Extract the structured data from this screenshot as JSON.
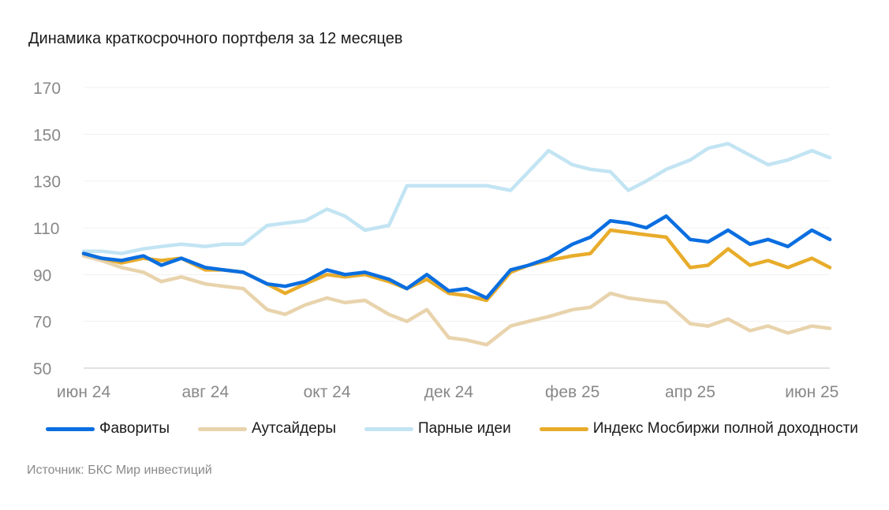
{
  "chart_data": {
    "type": "line",
    "title": "Динамика краткосрочного портфеля за 12 месяцев",
    "xlabel": "",
    "ylabel": "",
    "ylim": [
      50,
      170
    ],
    "yticks": [
      50,
      70,
      90,
      110,
      130,
      150,
      170
    ],
    "x_tick_labels": [
      "июн 24",
      "авг 24",
      "окт 24",
      "дек 24",
      "фев 25",
      "апр 25",
      "июн 25"
    ],
    "x_start": "2024-06-01",
    "x_end": "2025-06-10",
    "x_ticks": [
      "2024-06-01",
      "2024-08-01",
      "2024-10-01",
      "2024-12-01",
      "2025-02-01",
      "2025-04-01",
      "2025-06-01"
    ],
    "grid": true,
    "legend_position": "bottom",
    "series": [
      {
        "name": "Фавориты",
        "color": "#0a6ee0",
        "points": [
          [
            "2024-06-01",
            99
          ],
          [
            "2024-06-10",
            97
          ],
          [
            "2024-06-20",
            96
          ],
          [
            "2024-07-01",
            98
          ],
          [
            "2024-07-10",
            94
          ],
          [
            "2024-07-20",
            97
          ],
          [
            "2024-08-01",
            93
          ],
          [
            "2024-08-10",
            92
          ],
          [
            "2024-08-20",
            91
          ],
          [
            "2024-09-01",
            86
          ],
          [
            "2024-09-10",
            85
          ],
          [
            "2024-09-20",
            87
          ],
          [
            "2024-10-01",
            92
          ],
          [
            "2024-10-10",
            90
          ],
          [
            "2024-10-20",
            91
          ],
          [
            "2024-11-01",
            88
          ],
          [
            "2024-11-10",
            84
          ],
          [
            "2024-11-20",
            90
          ],
          [
            "2024-12-01",
            83
          ],
          [
            "2024-12-10",
            84
          ],
          [
            "2024-12-20",
            80
          ],
          [
            "2025-01-01",
            92
          ],
          [
            "2025-01-10",
            94
          ],
          [
            "2025-01-20",
            97
          ],
          [
            "2025-02-01",
            103
          ],
          [
            "2025-02-10",
            106
          ],
          [
            "2025-02-20",
            113
          ],
          [
            "2025-03-01",
            112
          ],
          [
            "2025-03-10",
            110
          ],
          [
            "2025-03-20",
            115
          ],
          [
            "2025-04-01",
            105
          ],
          [
            "2025-04-10",
            104
          ],
          [
            "2025-04-20",
            109
          ],
          [
            "2025-05-01",
            103
          ],
          [
            "2025-05-10",
            105
          ],
          [
            "2025-05-20",
            102
          ],
          [
            "2025-06-01",
            109
          ],
          [
            "2025-06-10",
            105
          ]
        ]
      },
      {
        "name": "Аутсайдеры",
        "color": "#e8d3ac",
        "points": [
          [
            "2024-06-01",
            98
          ],
          [
            "2024-06-10",
            96
          ],
          [
            "2024-06-20",
            93
          ],
          [
            "2024-07-01",
            91
          ],
          [
            "2024-07-10",
            87
          ],
          [
            "2024-07-20",
            89
          ],
          [
            "2024-08-01",
            86
          ],
          [
            "2024-08-10",
            85
          ],
          [
            "2024-08-20",
            84
          ],
          [
            "2024-09-01",
            75
          ],
          [
            "2024-09-10",
            73
          ],
          [
            "2024-09-20",
            77
          ],
          [
            "2024-10-01",
            80
          ],
          [
            "2024-10-10",
            78
          ],
          [
            "2024-10-20",
            79
          ],
          [
            "2024-11-01",
            73
          ],
          [
            "2024-11-10",
            70
          ],
          [
            "2024-11-20",
            75
          ],
          [
            "2024-12-01",
            63
          ],
          [
            "2024-12-10",
            62
          ],
          [
            "2024-12-20",
            60
          ],
          [
            "2025-01-01",
            68
          ],
          [
            "2025-01-10",
            70
          ],
          [
            "2025-01-20",
            72
          ],
          [
            "2025-02-01",
            75
          ],
          [
            "2025-02-10",
            76
          ],
          [
            "2025-02-20",
            82
          ],
          [
            "2025-03-01",
            80
          ],
          [
            "2025-03-10",
            79
          ],
          [
            "2025-03-20",
            78
          ],
          [
            "2025-04-01",
            69
          ],
          [
            "2025-04-10",
            68
          ],
          [
            "2025-04-20",
            71
          ],
          [
            "2025-05-01",
            66
          ],
          [
            "2025-05-10",
            68
          ],
          [
            "2025-05-20",
            65
          ],
          [
            "2025-06-01",
            68
          ],
          [
            "2025-06-10",
            67
          ]
        ]
      },
      {
        "name": "Парные идеи",
        "color": "#c2e4f3",
        "points": [
          [
            "2024-06-01",
            100
          ],
          [
            "2024-06-10",
            100
          ],
          [
            "2024-06-20",
            99
          ],
          [
            "2024-07-01",
            101
          ],
          [
            "2024-07-10",
            102
          ],
          [
            "2024-07-20",
            103
          ],
          [
            "2024-08-01",
            102
          ],
          [
            "2024-08-10",
            103
          ],
          [
            "2024-08-20",
            103
          ],
          [
            "2024-09-01",
            111
          ],
          [
            "2024-09-10",
            112
          ],
          [
            "2024-09-20",
            113
          ],
          [
            "2024-10-01",
            118
          ],
          [
            "2024-10-10",
            115
          ],
          [
            "2024-10-20",
            109
          ],
          [
            "2024-11-01",
            111
          ],
          [
            "2024-11-10",
            128
          ],
          [
            "2024-11-20",
            128
          ],
          [
            "2024-12-01",
            128
          ],
          [
            "2024-12-10",
            128
          ],
          [
            "2024-12-20",
            128
          ],
          [
            "2025-01-01",
            126
          ],
          [
            "2025-01-10",
            134
          ],
          [
            "2025-01-20",
            143
          ],
          [
            "2025-02-01",
            137
          ],
          [
            "2025-02-10",
            135
          ],
          [
            "2025-02-20",
            134
          ],
          [
            "2025-03-01",
            126
          ],
          [
            "2025-03-10",
            130
          ],
          [
            "2025-03-20",
            135
          ],
          [
            "2025-04-01",
            139
          ],
          [
            "2025-04-10",
            144
          ],
          [
            "2025-04-20",
            146
          ],
          [
            "2025-05-01",
            141
          ],
          [
            "2025-05-10",
            137
          ],
          [
            "2025-05-20",
            139
          ],
          [
            "2025-06-01",
            143
          ],
          [
            "2025-06-10",
            140
          ]
        ]
      },
      {
        "name": "Индекс Мосбиржи полной доходности",
        "color": "#e8ac2b",
        "points": [
          [
            "2024-06-01",
            99
          ],
          [
            "2024-06-10",
            97
          ],
          [
            "2024-06-20",
            95
          ],
          [
            "2024-07-01",
            97
          ],
          [
            "2024-07-10",
            96
          ],
          [
            "2024-07-20",
            97
          ],
          [
            "2024-08-01",
            92
          ],
          [
            "2024-08-10",
            92
          ],
          [
            "2024-08-20",
            91
          ],
          [
            "2024-09-01",
            86
          ],
          [
            "2024-09-10",
            82
          ],
          [
            "2024-09-20",
            86
          ],
          [
            "2024-10-01",
            90
          ],
          [
            "2024-10-10",
            89
          ],
          [
            "2024-10-20",
            90
          ],
          [
            "2024-11-01",
            87
          ],
          [
            "2024-11-10",
            84
          ],
          [
            "2024-11-20",
            88
          ],
          [
            "2024-12-01",
            82
          ],
          [
            "2024-12-10",
            81
          ],
          [
            "2024-12-20",
            79
          ],
          [
            "2025-01-01",
            91
          ],
          [
            "2025-01-10",
            94
          ],
          [
            "2025-01-20",
            96
          ],
          [
            "2025-02-01",
            98
          ],
          [
            "2025-02-10",
            99
          ],
          [
            "2025-02-20",
            109
          ],
          [
            "2025-03-01",
            108
          ],
          [
            "2025-03-10",
            107
          ],
          [
            "2025-03-20",
            106
          ],
          [
            "2025-04-01",
            93
          ],
          [
            "2025-04-10",
            94
          ],
          [
            "2025-04-20",
            101
          ],
          [
            "2025-05-01",
            94
          ],
          [
            "2025-05-10",
            96
          ],
          [
            "2025-05-20",
            93
          ],
          [
            "2025-06-01",
            97
          ],
          [
            "2025-06-10",
            93
          ]
        ]
      }
    ]
  },
  "source": "Источник: БКС Мир инвестиций"
}
